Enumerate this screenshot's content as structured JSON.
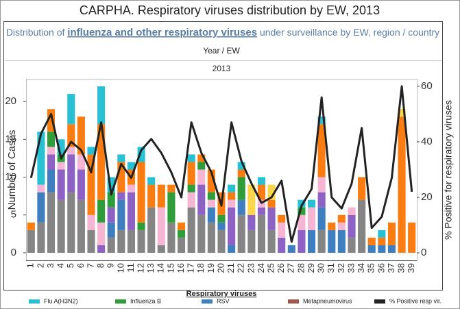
{
  "chart_data": {
    "type": "bar",
    "title": "CARPHA. Respiratory viruses distribution by EW, 2013",
    "subtitle_prefix": "Distribution of",
    "subtitle_emphasis": "influenza and other respiratory viruses",
    "subtitle_suffix": "under surveillance by EW, region / country",
    "x_header": "Year / EW",
    "x_group": "2013",
    "ylabel": "Number of Cases",
    "y2label": "% Positive for respiratory viruses",
    "legend_title": "Respiratory viruses",
    "categories": [
      "1",
      "2",
      "3",
      "4",
      "5",
      "6",
      "7",
      "8",
      "9",
      "10",
      "11",
      "12",
      "13",
      "14",
      "15",
      "16",
      "17",
      "18",
      "19",
      "20",
      "21",
      "22",
      "23",
      "24",
      "25",
      "26",
      "27",
      "28",
      "29",
      "30",
      "31",
      "32",
      "33",
      "34",
      "35",
      "36",
      "37",
      "38",
      "39"
    ],
    "stacked": true,
    "grid": false,
    "ylim": [
      -1,
      23
    ],
    "yticks": [
      0,
      5,
      10,
      15,
      20
    ],
    "y2lim": [
      -2.7,
      62.7
    ],
    "y2ticks": [
      0,
      20,
      40,
      60
    ],
    "series": [
      {
        "color": "#858585",
        "values": [
          3,
          4,
          8,
          7,
          8,
          7,
          3,
          0,
          2,
          3,
          3,
          3,
          6,
          1,
          4,
          2,
          6,
          5,
          4,
          3,
          0,
          5,
          3,
          5,
          3,
          0,
          0,
          0,
          0,
          3,
          0,
          0,
          2,
          7,
          0,
          0,
          0,
          0,
          0
        ]
      },
      {
        "name": "RSV",
        "color": "#3f7fc0",
        "values": [
          0,
          4,
          3,
          0,
          0,
          0,
          0,
          0,
          2,
          4,
          0,
          0,
          0,
          0,
          0,
          0,
          0,
          0,
          2,
          1,
          1,
          2,
          0,
          0,
          0,
          0,
          1,
          0,
          3,
          3,
          3,
          3,
          0,
          0,
          1,
          1,
          1,
          0,
          0
        ]
      },
      {
        "color": "#8e62c4",
        "values": [
          0,
          0,
          2,
          4,
          5,
          4,
          0,
          1,
          2,
          1,
          5,
          0,
          0,
          0,
          0,
          0,
          0,
          4,
          0,
          0,
          5,
          0,
          2,
          1,
          3,
          2,
          0,
          3,
          0,
          2,
          0,
          0,
          3,
          0,
          0,
          0,
          0,
          0,
          0
        ]
      },
      {
        "color": "#f5b5d3",
        "values": [
          0,
          1,
          1,
          1,
          1,
          2,
          2,
          3,
          0,
          0,
          1,
          0,
          0,
          5,
          0,
          0,
          2,
          2,
          1,
          0,
          1,
          0,
          0,
          1,
          0,
          2,
          0,
          2,
          3,
          2,
          0,
          1,
          1,
          0,
          0,
          0,
          0,
          0,
          0
        ]
      },
      {
        "name": "Influenza B",
        "color": "#2f9e3a",
        "values": [
          0,
          0,
          2,
          1,
          0,
          0,
          0,
          3,
          2,
          0,
          0,
          1,
          0,
          0,
          4,
          1,
          1,
          1,
          1,
          1,
          0,
          3,
          0,
          0,
          0,
          0,
          0,
          1,
          0,
          0,
          0,
          0,
          0,
          0,
          0,
          0,
          0,
          0,
          0
        ]
      },
      {
        "color": "#fb7d12",
        "values": [
          1,
          0,
          3,
          0,
          3,
          5,
          8,
          10,
          0,
          4,
          2,
          8,
          3,
          3,
          1,
          1,
          3,
          1,
          3,
          3,
          1,
          1,
          0,
          2,
          1,
          1,
          0,
          0,
          0,
          7,
          1,
          1,
          0,
          3,
          1,
          1,
          3,
          18,
          4
        ]
      },
      {
        "color": "#fcd64a",
        "values": [
          0,
          0,
          0,
          0,
          0,
          0,
          0,
          0,
          0,
          0,
          0,
          0,
          0,
          0,
          0,
          0,
          0,
          0,
          0,
          0,
          0,
          0,
          4,
          0,
          2,
          0,
          0,
          0,
          0,
          0,
          0,
          0,
          0,
          0,
          0,
          0,
          0,
          1,
          0
        ]
      },
      {
        "name": "Flu A(H3N2)",
        "color": "#29c0d4",
        "values": [
          0,
          7,
          0,
          2,
          4,
          0,
          1,
          5,
          2,
          1,
          1,
          2,
          1,
          0,
          0,
          0,
          1,
          0,
          0,
          0,
          1,
          1,
          0,
          1,
          0,
          0,
          0,
          1,
          1,
          1,
          0,
          0,
          0,
          0,
          0,
          1,
          0,
          0,
          0
        ]
      },
      {
        "name": "Metapneumovirus",
        "color": "#9c5a4a",
        "values": [
          0,
          0,
          0,
          0,
          0,
          0,
          0,
          0,
          0,
          0,
          0,
          0,
          0,
          0,
          0,
          0,
          0,
          0,
          0,
          0,
          0,
          0,
          0,
          0,
          0,
          0,
          0,
          0,
          0,
          0,
          0,
          0,
          0,
          0,
          0,
          0,
          0,
          0,
          0
        ]
      },
      {
        "name": "% Positive resp vir.",
        "type": "line",
        "axis": "y2",
        "color": "#222222",
        "values": [
          27,
          43,
          50,
          34,
          40,
          37,
          29,
          47,
          21,
          32,
          27,
          37,
          41,
          36,
          29,
          20,
          47,
          36,
          29,
          17,
          47,
          33,
          25,
          18,
          20,
          26,
          4,
          17,
          23,
          56,
          20,
          16,
          25,
          45,
          9,
          13,
          27,
          60,
          22
        ]
      }
    ]
  }
}
